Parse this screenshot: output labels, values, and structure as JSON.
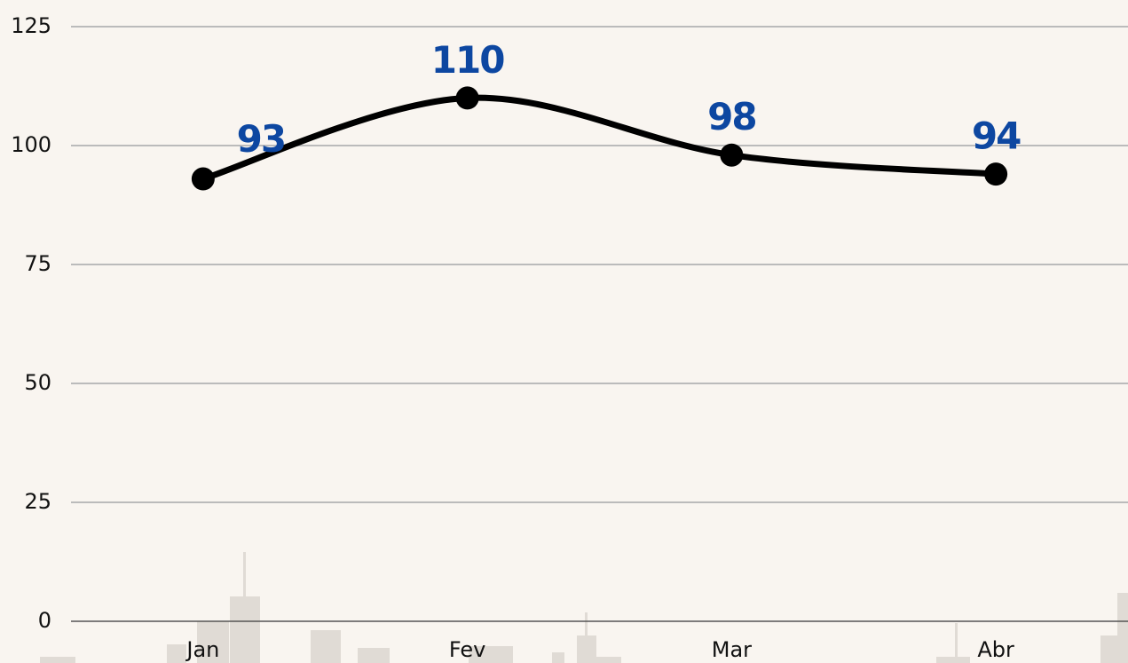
{
  "chart_data": {
    "type": "line",
    "categories": [
      "Jan",
      "Fev",
      "Mar",
      "Abr"
    ],
    "values": [
      93,
      110,
      98,
      94
    ],
    "color": "#000000",
    "label_color": "#0d47a1",
    "ylim": [
      0,
      125
    ],
    "yticks": [
      0,
      25,
      50,
      75,
      100,
      125
    ],
    "grid": true
  }
}
